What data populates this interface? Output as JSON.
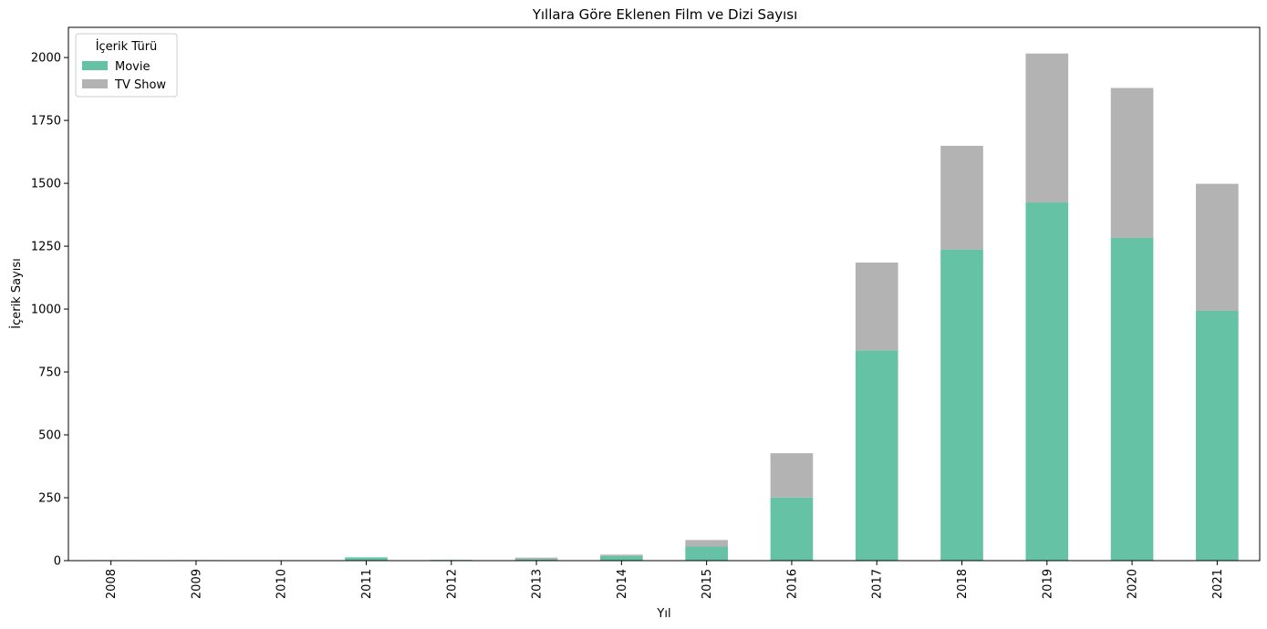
{
  "chart_data": {
    "type": "bar",
    "stacked": true,
    "title": "Yıllara Göre Eklenen Film ve Dizi Sayısı",
    "xlabel": "Yıl",
    "ylabel": "İçerik Sayısı",
    "categories": [
      "2008",
      "2009",
      "2010",
      "2011",
      "2012",
      "2013",
      "2014",
      "2015",
      "2016",
      "2017",
      "2018",
      "2019",
      "2020",
      "2021"
    ],
    "series": [
      {
        "name": "Movie",
        "color": "#66c2a5",
        "values": [
          1,
          2,
          1,
          13,
          3,
          6,
          19,
          56,
          251,
          836,
          1237,
          1424,
          1284,
          993
        ]
      },
      {
        "name": "TV Show",
        "color": "#b3b3b3",
        "values": [
          1,
          0,
          0,
          0,
          0,
          6,
          5,
          26,
          176,
          349,
          412,
          592,
          595,
          505
        ]
      }
    ],
    "ylim": [
      0,
      2120
    ],
    "yticks": [
      0,
      250,
      500,
      750,
      1000,
      1250,
      1500,
      1750,
      2000
    ],
    "legend": {
      "title": "İçerik Türü",
      "position": "top-left"
    },
    "grid": false
  }
}
